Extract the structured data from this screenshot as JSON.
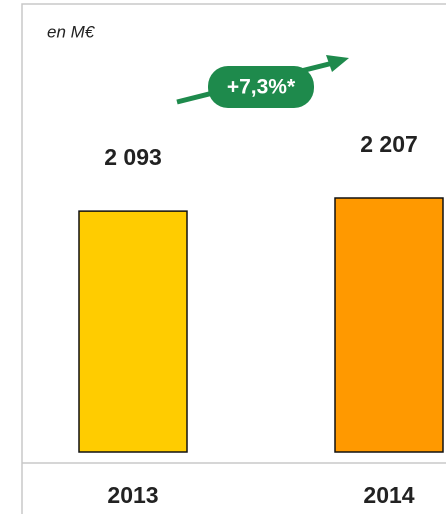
{
  "chart_data": {
    "type": "bar",
    "subtitle": "en M€",
    "categories": [
      "2013",
      "2014"
    ],
    "values": [
      2093,
      2207
    ],
    "value_labels": [
      "2 093",
      "2 207"
    ],
    "colors": [
      "#ffcc00",
      "#ff9900"
    ],
    "annotation": "+7,3%*"
  }
}
